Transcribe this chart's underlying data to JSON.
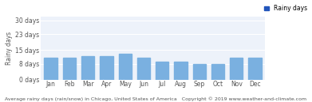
{
  "months": [
    "Jan",
    "Feb",
    "Mar",
    "Apr",
    "May",
    "Jun",
    "Jul",
    "Aug",
    "Sep",
    "Oct",
    "Nov",
    "Dec"
  ],
  "values": [
    11,
    11,
    12,
    12,
    13,
    11,
    9,
    9,
    8,
    8,
    11,
    11
  ],
  "bar_color": "#7ab0e0",
  "background_color": "#ffffff",
  "plot_bg_color": "#edf2fa",
  "grid_color": "#ffffff",
  "ylabel": "Rainy days",
  "yticks": [
    0,
    8,
    15,
    23,
    30
  ],
  "ytick_labels": [
    "0 days",
    "8 days",
    "15 days",
    "23 days",
    "30 days"
  ],
  "ylim": [
    0,
    32
  ],
  "legend_label": "Rainy days",
  "legend_color": "#2255bb",
  "caption": "Average rainy days (rain/snow) in Chicago, United States of America   Copyright © 2019 www.weather-and-climate.com",
  "caption_fontsize": 4.5,
  "tick_fontsize": 5.5,
  "ylabel_fontsize": 5.5
}
